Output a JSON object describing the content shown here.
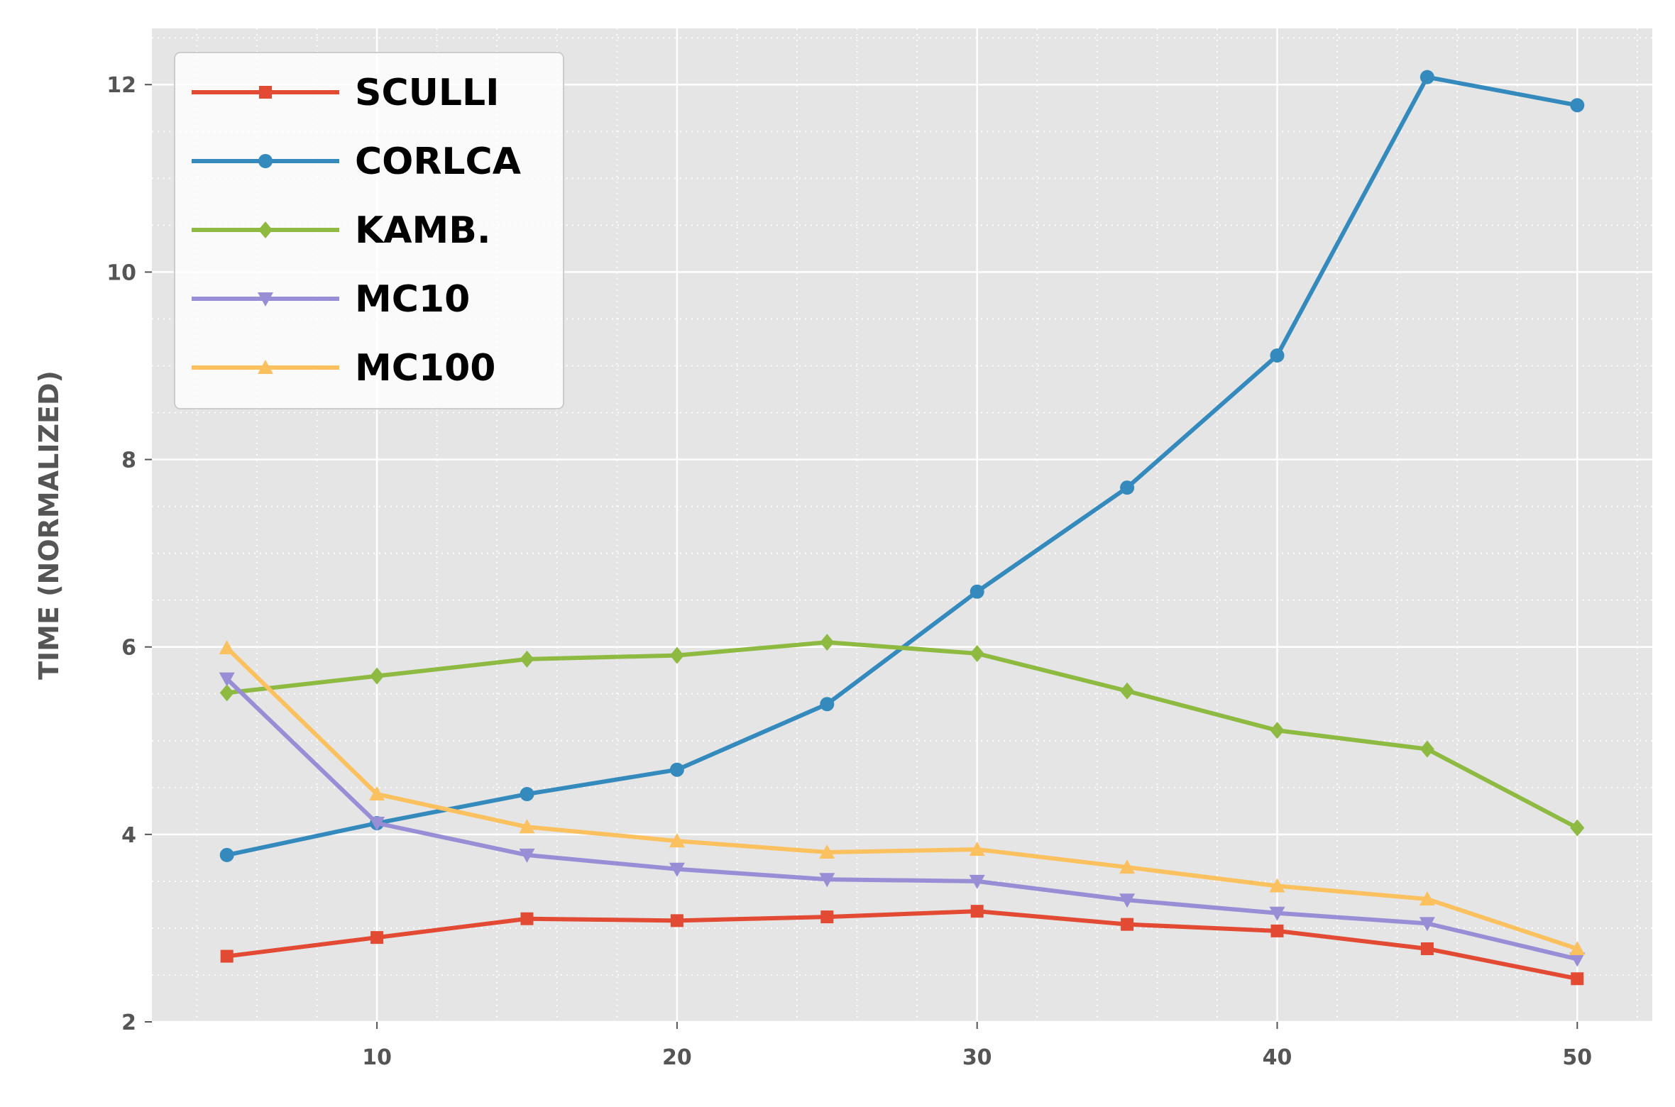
{
  "chart_data": {
    "type": "line",
    "title": "",
    "xlabel": "",
    "ylabel": "TIME (NORMALIZED)",
    "x": [
      5,
      10,
      15,
      20,
      25,
      30,
      35,
      40,
      45,
      50
    ],
    "xlim": [
      2.5,
      52.5
    ],
    "ylim": [
      2,
      12.6
    ],
    "xticks": [
      10,
      20,
      30,
      40,
      50
    ],
    "yticks": [
      2,
      4,
      6,
      8,
      10,
      12
    ],
    "xtick_labels": [
      "10",
      "20",
      "30",
      "40",
      "50"
    ],
    "ytick_labels": [
      "2",
      "4",
      "6",
      "8",
      "10",
      "12"
    ],
    "grid": true,
    "minor_grid": true,
    "legend_position": "top-left",
    "series": [
      {
        "name": "SCULLI",
        "color": "#e24a33",
        "marker": "square",
        "values": [
          2.7,
          2.9,
          3.1,
          3.08,
          3.12,
          3.18,
          3.04,
          2.97,
          2.78,
          2.46
        ]
      },
      {
        "name": "CORLCA",
        "color": "#348abd",
        "marker": "circle",
        "values": [
          3.78,
          4.12,
          4.43,
          4.69,
          5.39,
          6.59,
          7.7,
          9.11,
          12.08,
          11.78
        ]
      },
      {
        "name": "KAMB.",
        "color": "#8eba42",
        "marker": "diamond",
        "values": [
          5.51,
          5.69,
          5.87,
          5.91,
          6.05,
          5.93,
          5.53,
          5.11,
          4.91,
          4.07
        ]
      },
      {
        "name": "MC10",
        "color": "#988ed5",
        "marker": "triangle-down",
        "values": [
          5.66,
          4.12,
          3.78,
          3.63,
          3.52,
          3.5,
          3.3,
          3.16,
          3.05,
          2.67
        ]
      },
      {
        "name": "MC100",
        "color": "#fbc15e",
        "marker": "triangle-up",
        "values": [
          5.99,
          4.43,
          4.08,
          3.93,
          3.81,
          3.84,
          3.65,
          3.45,
          3.31,
          2.78
        ]
      }
    ]
  }
}
